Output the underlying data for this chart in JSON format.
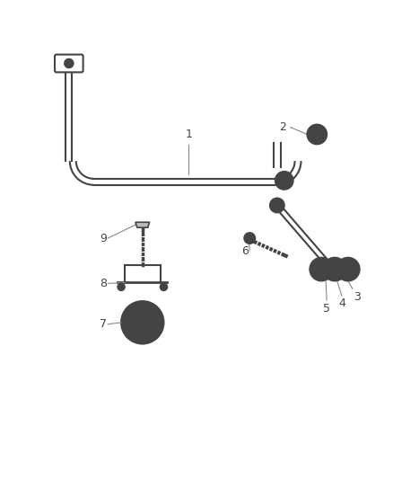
{
  "background_color": "#ffffff",
  "line_color": "#444444",
  "label_color": "#333333",
  "dashed_color": "#888888",
  "fig_width": 4.38,
  "fig_height": 5.33,
  "dpi": 100
}
